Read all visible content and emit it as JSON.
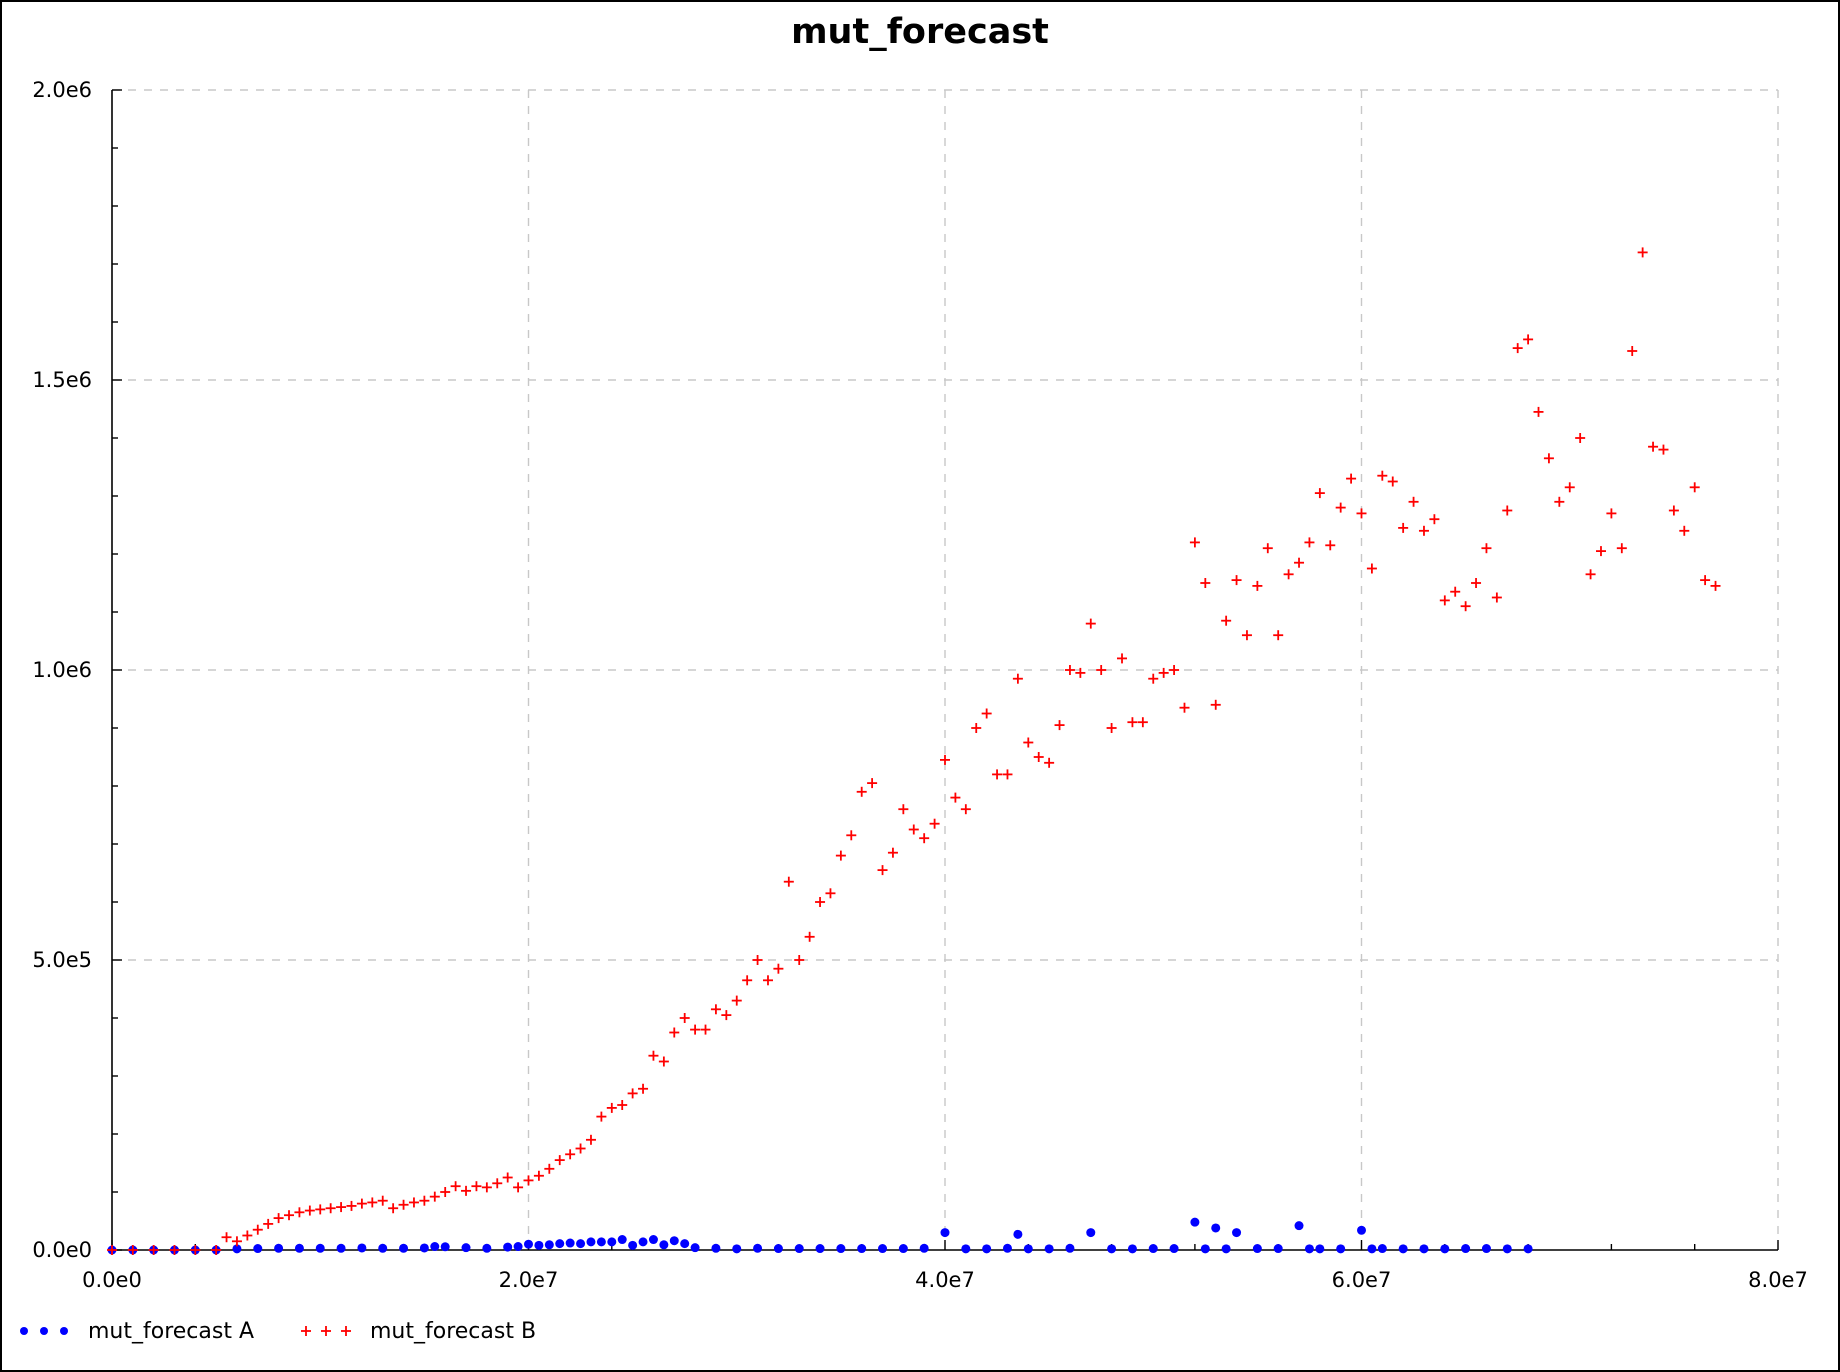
{
  "chart_data": {
    "type": "scatter",
    "title": "mut_forecast",
    "xlabel": "",
    "ylabel": "",
    "xlim": [
      0,
      80000000
    ],
    "ylim": [
      0,
      2000000
    ],
    "x_ticks": [
      0,
      20000000,
      40000000,
      60000000,
      80000000
    ],
    "x_tick_labels": [
      "0.0e0",
      "2.0e7",
      "4.0e7",
      "6.0e7",
      "8.0e7"
    ],
    "y_ticks": [
      0,
      500000,
      1000000,
      1500000,
      2000000
    ],
    "y_tick_labels": [
      "0.0e0",
      "5.0e5",
      "1.0e6",
      "1.5e6",
      "2.0e6"
    ],
    "grid": true,
    "legend_position": "bottom-left",
    "series": [
      {
        "name": "mut_forecast A",
        "marker": "dot",
        "color": "#0000ff",
        "points": [
          [
            0,
            0
          ],
          [
            1000000,
            0
          ],
          [
            2000000,
            0
          ],
          [
            3000000,
            0
          ],
          [
            4000000,
            0
          ],
          [
            5000000,
            0
          ],
          [
            6000000,
            2000
          ],
          [
            7000000,
            2500
          ],
          [
            8000000,
            3000
          ],
          [
            9000000,
            3000
          ],
          [
            10000000,
            3000
          ],
          [
            11000000,
            3000
          ],
          [
            12000000,
            3500
          ],
          [
            13000000,
            3000
          ],
          [
            14000000,
            3000
          ],
          [
            15000000,
            3500
          ],
          [
            15500000,
            6000
          ],
          [
            16000000,
            5500
          ],
          [
            17000000,
            4000
          ],
          [
            18000000,
            3000
          ],
          [
            19000000,
            5000
          ],
          [
            19500000,
            6000
          ],
          [
            20000000,
            10000
          ],
          [
            20500000,
            8000
          ],
          [
            21000000,
            9000
          ],
          [
            21500000,
            11000
          ],
          [
            22000000,
            12000
          ],
          [
            22500000,
            11000
          ],
          [
            23000000,
            14000
          ],
          [
            23500000,
            14000
          ],
          [
            24000000,
            14000
          ],
          [
            24500000,
            18000
          ],
          [
            25000000,
            8000
          ],
          [
            25500000,
            14000
          ],
          [
            26000000,
            18000
          ],
          [
            26500000,
            9000
          ],
          [
            27000000,
            16000
          ],
          [
            27500000,
            11000
          ],
          [
            28000000,
            4000
          ],
          [
            29000000,
            3000
          ],
          [
            30000000,
            2000
          ],
          [
            31000000,
            3000
          ],
          [
            32000000,
            2500
          ],
          [
            33000000,
            2500
          ],
          [
            34000000,
            2500
          ],
          [
            35000000,
            2500
          ],
          [
            36000000,
            2500
          ],
          [
            37000000,
            2500
          ],
          [
            38000000,
            2500
          ],
          [
            39000000,
            3000
          ],
          [
            40000000,
            30000
          ],
          [
            41000000,
            2000
          ],
          [
            42000000,
            2000
          ],
          [
            43000000,
            3000
          ],
          [
            43500000,
            27000
          ],
          [
            44000000,
            2000
          ],
          [
            45000000,
            2000
          ],
          [
            46000000,
            3000
          ],
          [
            47000000,
            30000
          ],
          [
            48000000,
            2000
          ],
          [
            49000000,
            2000
          ],
          [
            50000000,
            2500
          ],
          [
            51000000,
            2500
          ],
          [
            52000000,
            48000
          ],
          [
            52500000,
            2000
          ],
          [
            53000000,
            38000
          ],
          [
            53500000,
            2000
          ],
          [
            54000000,
            30000
          ],
          [
            55000000,
            2500
          ],
          [
            56000000,
            2500
          ],
          [
            57000000,
            42000
          ],
          [
            57500000,
            2000
          ],
          [
            58000000,
            2000
          ],
          [
            59000000,
            2000
          ],
          [
            60000000,
            34000
          ],
          [
            60500000,
            2000
          ],
          [
            61000000,
            2500
          ],
          [
            62000000,
            2000
          ],
          [
            63000000,
            2000
          ],
          [
            64000000,
            2000
          ],
          [
            65000000,
            2500
          ],
          [
            66000000,
            2500
          ],
          [
            67000000,
            2000
          ],
          [
            68000000,
            2000
          ]
        ]
      },
      {
        "name": "mut_forecast B",
        "marker": "plus",
        "color": "#ff0000",
        "points": [
          [
            0,
            0
          ],
          [
            1000000,
            0
          ],
          [
            2000000,
            0
          ],
          [
            3000000,
            0
          ],
          [
            4000000,
            0
          ],
          [
            5000000,
            0
          ],
          [
            5500000,
            22000
          ],
          [
            6000000,
            15000
          ],
          [
            6500000,
            25000
          ],
          [
            7000000,
            35000
          ],
          [
            7500000,
            45000
          ],
          [
            8000000,
            55000
          ],
          [
            8500000,
            60000
          ],
          [
            9000000,
            65000
          ],
          [
            9500000,
            68000
          ],
          [
            10000000,
            70000
          ],
          [
            10500000,
            72000
          ],
          [
            11000000,
            74000
          ],
          [
            11500000,
            76000
          ],
          [
            12000000,
            80000
          ],
          [
            12500000,
            82000
          ],
          [
            13000000,
            85000
          ],
          [
            13500000,
            72000
          ],
          [
            14000000,
            78000
          ],
          [
            14500000,
            82000
          ],
          [
            15000000,
            85000
          ],
          [
            15500000,
            92000
          ],
          [
            16000000,
            100000
          ],
          [
            16500000,
            110000
          ],
          [
            17000000,
            102000
          ],
          [
            17500000,
            110000
          ],
          [
            18000000,
            108000
          ],
          [
            18500000,
            115000
          ],
          [
            19000000,
            125000
          ],
          [
            19500000,
            108000
          ],
          [
            20000000,
            120000
          ],
          [
            20500000,
            128000
          ],
          [
            21000000,
            140000
          ],
          [
            21500000,
            155000
          ],
          [
            22000000,
            165000
          ],
          [
            22500000,
            175000
          ],
          [
            23000000,
            190000
          ],
          [
            23500000,
            230000
          ],
          [
            24000000,
            245000
          ],
          [
            24500000,
            250000
          ],
          [
            25000000,
            270000
          ],
          [
            25500000,
            278000
          ],
          [
            26000000,
            335000
          ],
          [
            26500000,
            325000
          ],
          [
            27000000,
            375000
          ],
          [
            27500000,
            400000
          ],
          [
            28000000,
            380000
          ],
          [
            28500000,
            380000
          ],
          [
            29000000,
            415000
          ],
          [
            29500000,
            405000
          ],
          [
            30000000,
            430000
          ],
          [
            30500000,
            465000
          ],
          [
            31000000,
            500000
          ],
          [
            31500000,
            465000
          ],
          [
            32000000,
            485000
          ],
          [
            32500000,
            635000
          ],
          [
            33000000,
            500000
          ],
          [
            33500000,
            540000
          ],
          [
            34000000,
            600000
          ],
          [
            34500000,
            615000
          ],
          [
            35000000,
            680000
          ],
          [
            35500000,
            715000
          ],
          [
            36000000,
            790000
          ],
          [
            36500000,
            805000
          ],
          [
            37000000,
            655000
          ],
          [
            37500000,
            685000
          ],
          [
            38000000,
            760000
          ],
          [
            38500000,
            725000
          ],
          [
            39000000,
            710000
          ],
          [
            39500000,
            735000
          ],
          [
            40000000,
            845000
          ],
          [
            40500000,
            780000
          ],
          [
            41000000,
            760000
          ],
          [
            41500000,
            900000
          ],
          [
            42000000,
            925000
          ],
          [
            42500000,
            820000
          ],
          [
            43000000,
            820000
          ],
          [
            43500000,
            985000
          ],
          [
            44000000,
            875000
          ],
          [
            44500000,
            850000
          ],
          [
            45000000,
            840000
          ],
          [
            45500000,
            905000
          ],
          [
            46000000,
            1000000
          ],
          [
            46500000,
            995000
          ],
          [
            47000000,
            1080000
          ],
          [
            47500000,
            1000000
          ],
          [
            48000000,
            900000
          ],
          [
            48500000,
            1020000
          ],
          [
            49000000,
            910000
          ],
          [
            49500000,
            910000
          ],
          [
            50000000,
            985000
          ],
          [
            50500000,
            995000
          ],
          [
            51000000,
            1000000
          ],
          [
            51500000,
            935000
          ],
          [
            52000000,
            1220000
          ],
          [
            52500000,
            1150000
          ],
          [
            53000000,
            940000
          ],
          [
            53500000,
            1085000
          ],
          [
            54000000,
            1155000
          ],
          [
            54500000,
            1060000
          ],
          [
            55000000,
            1145000
          ],
          [
            55500000,
            1210000
          ],
          [
            56000000,
            1060000
          ],
          [
            56500000,
            1165000
          ],
          [
            57000000,
            1185000
          ],
          [
            57500000,
            1220000
          ],
          [
            58000000,
            1305000
          ],
          [
            58500000,
            1215000
          ],
          [
            59000000,
            1280000
          ],
          [
            59500000,
            1330000
          ],
          [
            60000000,
            1270000
          ],
          [
            60500000,
            1175000
          ],
          [
            61000000,
            1335000
          ],
          [
            61500000,
            1325000
          ],
          [
            62000000,
            1245000
          ],
          [
            62500000,
            1290000
          ],
          [
            63000000,
            1240000
          ],
          [
            63500000,
            1260000
          ],
          [
            64000000,
            1120000
          ],
          [
            64500000,
            1135000
          ],
          [
            65000000,
            1110000
          ],
          [
            65500000,
            1150000
          ],
          [
            66000000,
            1210000
          ],
          [
            66500000,
            1125000
          ],
          [
            67000000,
            1275000
          ],
          [
            67500000,
            1555000
          ],
          [
            68000000,
            1570000
          ],
          [
            68500000,
            1445000
          ],
          [
            69000000,
            1365000
          ],
          [
            69500000,
            1290000
          ],
          [
            70000000,
            1315000
          ],
          [
            70500000,
            1400000
          ],
          [
            71000000,
            1165000
          ],
          [
            71500000,
            1205000
          ],
          [
            72000000,
            1270000
          ],
          [
            72500000,
            1210000
          ],
          [
            73000000,
            1550000
          ],
          [
            73500000,
            1720000
          ],
          [
            74000000,
            1385000
          ],
          [
            74500000,
            1380000
          ],
          [
            75000000,
            1275000
          ],
          [
            75500000,
            1240000
          ],
          [
            76000000,
            1315000
          ],
          [
            76500000,
            1155000
          ],
          [
            77000000,
            1145000
          ]
        ]
      }
    ]
  }
}
